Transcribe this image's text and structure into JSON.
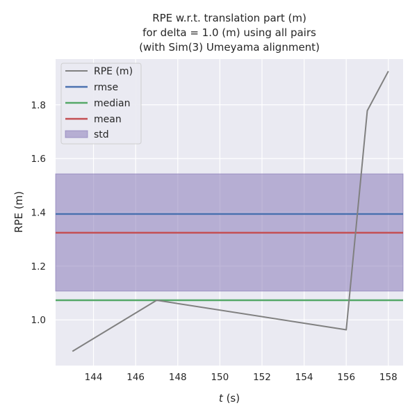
{
  "chart_data": {
    "type": "line",
    "title": [
      "RPE w.r.t. translation part (m)",
      "for delta = 1.0 (m) using all pairs",
      "(with Sim(3) Umeyama alignment)"
    ],
    "xlabel_var": "t",
    "xlabel_unit": " (s)",
    "ylabel": "RPE (m)",
    "xlim": [
      142.2,
      158.7
    ],
    "ylim": [
      0.83,
      1.97
    ],
    "xticks": [
      144,
      146,
      148,
      150,
      152,
      154,
      156,
      158
    ],
    "yticks": [
      1.0,
      1.2,
      1.4,
      1.6,
      1.8
    ],
    "grid": true,
    "legend_position": "top-left",
    "series": [
      {
        "name": "RPE (m)",
        "color": "#808080",
        "x": [
          143,
          147,
          156,
          157,
          158
        ],
        "y": [
          0.883,
          1.073,
          0.963,
          1.778,
          1.925
        ]
      }
    ],
    "hlines": [
      {
        "name": "rmse",
        "color": "#4c72b0",
        "value": 1.394
      },
      {
        "name": "median",
        "color": "#55a868",
        "value": 1.073
      },
      {
        "name": "mean",
        "color": "#c44e52",
        "value": 1.324
      }
    ],
    "band": {
      "name": "std",
      "color": "#8172b3",
      "low": 1.107,
      "high": 1.543
    }
  }
}
